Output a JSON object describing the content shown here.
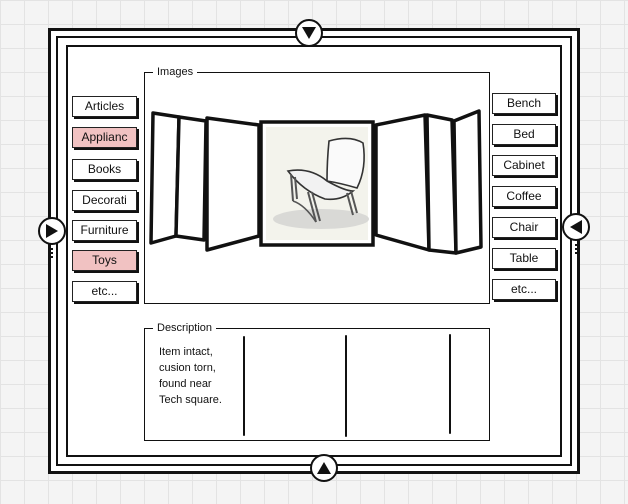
{
  "images_group": {
    "legend": "Images"
  },
  "description_group": {
    "legend": "Description",
    "lines": [
      "Item intact,",
      "cusion torn,",
      "found near",
      "Tech square."
    ]
  },
  "left_categories": [
    {
      "label": "Articles",
      "selected": false
    },
    {
      "label": "Applianc",
      "selected": true
    },
    {
      "label": "Books",
      "selected": false
    },
    {
      "label": "Decorati",
      "selected": false
    },
    {
      "label": "Furniture",
      "selected": false
    },
    {
      "label": "Toys",
      "selected": true
    },
    {
      "label": "etc...",
      "selected": false
    }
  ],
  "right_items": [
    {
      "label": "Bench"
    },
    {
      "label": "Bed"
    },
    {
      "label": "Cabinet"
    },
    {
      "label": "Coffee"
    },
    {
      "label": "Chair"
    },
    {
      "label": "Table"
    },
    {
      "label": "etc..."
    }
  ],
  "colors": {
    "selected_fill": "#f1c2c2",
    "ink": "#111111",
    "grid_bg": "#f4f4f4"
  },
  "icons": {
    "up_nav": "triangle-down-icon",
    "down_nav": "triangle-up-icon",
    "left_nav": "triangle-right-icon",
    "right_nav": "triangle-left-icon",
    "chair_image": "chair-icon"
  }
}
